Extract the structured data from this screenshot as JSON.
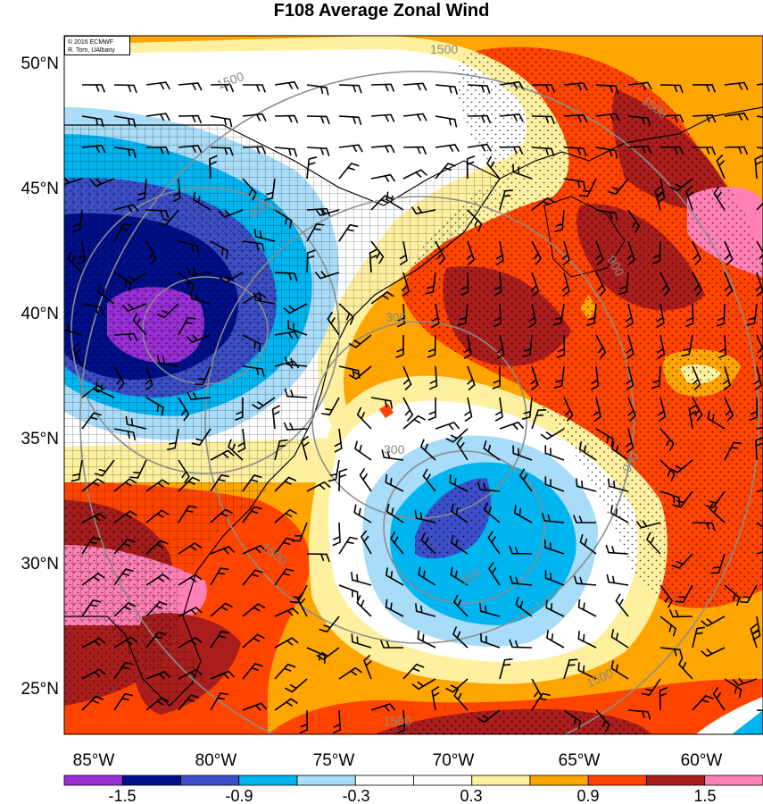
{
  "title": "F108 Average Zonal Wind",
  "credit": {
    "line1": "© 2016 ECMWF",
    "line2": "R. Torn, UAlbany"
  },
  "latitude_labels": [
    "50°N",
    "45°N",
    "40°N",
    "35°N",
    "30°N",
    "25°N"
  ],
  "longitude_labels": [
    "85°W",
    "80°W",
    "75°W",
    "70°W",
    "65°W",
    "60°W"
  ],
  "colorbar": {
    "colors": [
      "#9b30d9",
      "#000f8c",
      "#3c4fc8",
      "#00b4f0",
      "#a8dcf8",
      "#ffffff",
      "#ffffff",
      "#fff0a0",
      "#ffa500",
      "#ff4400",
      "#a91d1d",
      "#ff80b4"
    ],
    "tick_labels": [
      "-1.5",
      "-0.9",
      "-0.3",
      "0.3",
      "0.9",
      "1.5"
    ]
  },
  "contour_labels": [
    "1500",
    "1500",
    "1500",
    "900",
    "900",
    "300",
    "300",
    "900",
    "1500",
    "900",
    "1500",
    "1500"
  ]
}
